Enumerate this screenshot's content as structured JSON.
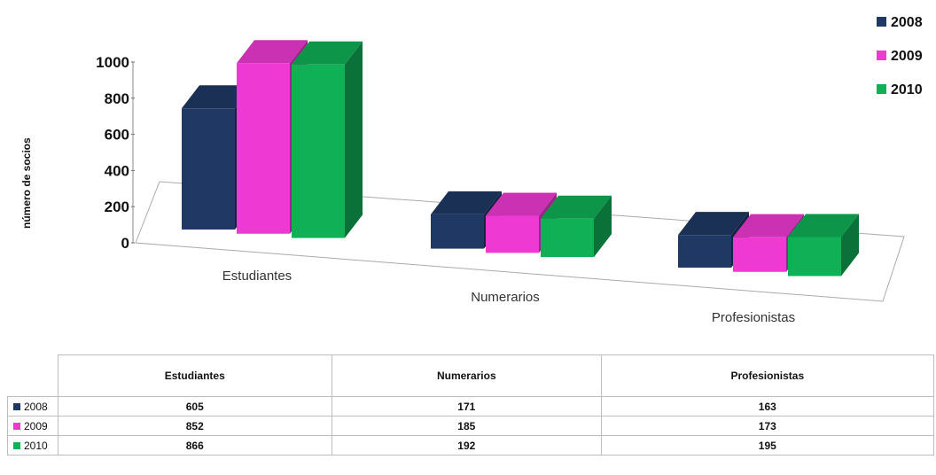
{
  "chart_data": {
    "type": "bar",
    "categories": [
      "Estudiantes",
      "Numerarios",
      "Profesionistas"
    ],
    "series": [
      {
        "name": "2008",
        "values": [
          605,
          171,
          163
        ],
        "color": "#1f3864"
      },
      {
        "name": "2009",
        "values": [
          852,
          185,
          173
        ],
        "color": "#ee3ad3"
      },
      {
        "name": "2010",
        "values": [
          866,
          192,
          195
        ],
        "color": "#0fb056"
      }
    ],
    "ylabel": "número de socios",
    "ylim": [
      0,
      1000
    ],
    "yticks": [
      "0",
      "200",
      "400",
      "600",
      "800",
      "1000"
    ],
    "legend_position": "top-right",
    "grid": false
  },
  "table": {
    "headers": [
      "Estudiantes",
      "Numerarios",
      "Profesionistas"
    ],
    "rows": [
      {
        "label": "2008",
        "values": [
          "605",
          "171",
          "163"
        ],
        "color": "#1f3864"
      },
      {
        "label": "2009",
        "values": [
          "852",
          "185",
          "173"
        ],
        "color": "#ee3ad3"
      },
      {
        "label": "2010",
        "values": [
          "866",
          "192",
          "195"
        ],
        "color": "#0fb056"
      }
    ]
  }
}
